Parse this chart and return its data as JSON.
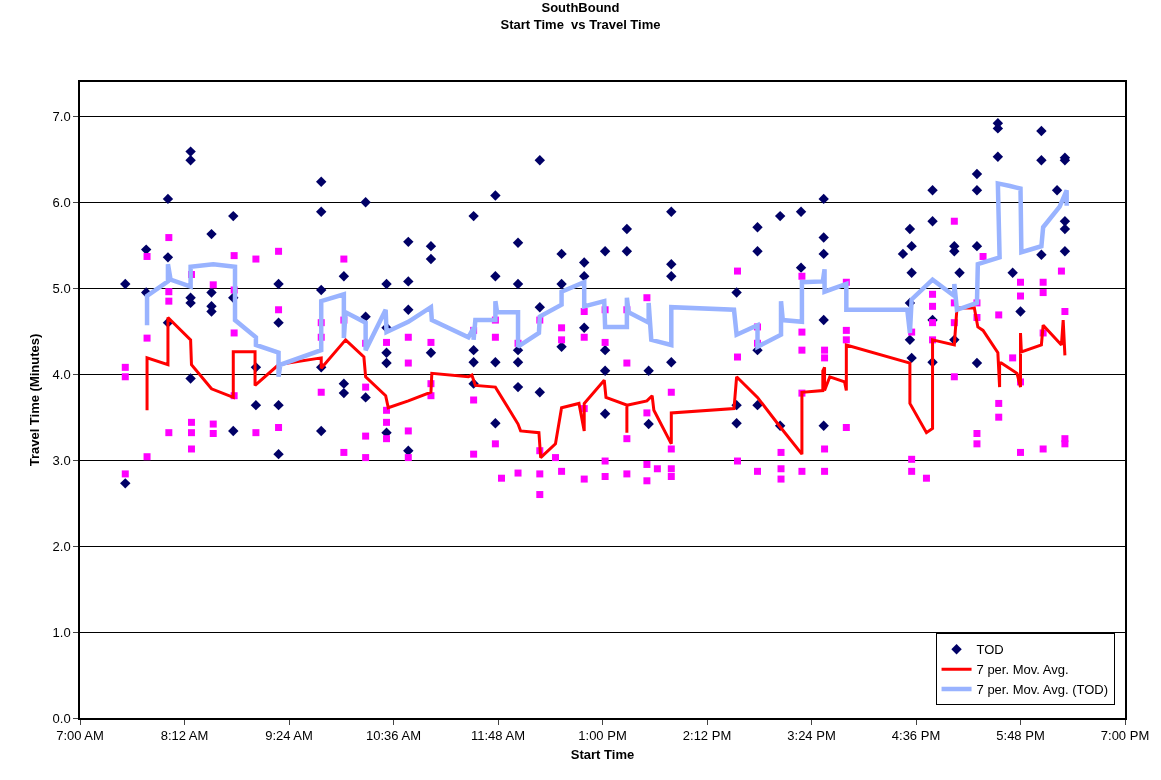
{
  "chart_data": {
    "type": "scatter",
    "title": "SouthBound",
    "subtitle": "Start Time  vs Travel Time",
    "xlabel": "Start Time",
    "ylabel": "Travel Time (Minutes)",
    "xlim": [
      7,
      19
    ],
    "xticks": [
      {
        "value": 7,
        "label": "7:00 AM"
      },
      {
        "value": 8.2,
        "label": "8:12 AM"
      },
      {
        "value": 9.4,
        "label": "9:24 AM"
      },
      {
        "value": 10.6,
        "label": "10:36 AM"
      },
      {
        "value": 11.8,
        "label": "11:48 AM"
      },
      {
        "value": 13,
        "label": "1:00 PM"
      },
      {
        "value": 14.2,
        "label": "2:12 PM"
      },
      {
        "value": 15.4,
        "label": "3:24 PM"
      },
      {
        "value": 16.6,
        "label": "4:36 PM"
      },
      {
        "value": 17.8,
        "label": "5:48 PM"
      },
      {
        "value": 19,
        "label": "7:00 PM"
      }
    ],
    "ylim": [
      0,
      7.4
    ],
    "yticks": [
      {
        "value": 0,
        "label": "0.0"
      },
      {
        "value": 1,
        "label": "1.0"
      },
      {
        "value": 2,
        "label": "2.0"
      },
      {
        "value": 3,
        "label": "3.0"
      },
      {
        "value": 4,
        "label": "4.0"
      },
      {
        "value": 5,
        "label": "5.0"
      },
      {
        "value": 6,
        "label": "6.0"
      },
      {
        "value": 7,
        "label": "7.0"
      }
    ],
    "grid": "y",
    "legend": "bottom right",
    "series": [
      {
        "name": "TOD",
        "marker": "diamond",
        "color": "#000066",
        "x": [
          7.52,
          7.52,
          7.76,
          7.76,
          8.01,
          8.01,
          8.01,
          8.27,
          8.27,
          8.27,
          8.27,
          8.27,
          8.51,
          8.51,
          8.51,
          8.51,
          8.76,
          8.76,
          8.76,
          9.02,
          9.02,
          9.28,
          9.28,
          9.28,
          9.28,
          9.77,
          9.77,
          9.77,
          9.77,
          9.77,
          10.03,
          10.03,
          10.03,
          10.28,
          10.28,
          10.28,
          10.52,
          10.52,
          10.52,
          10.52,
          10.52,
          10.77,
          10.77,
          10.77,
          10.77,
          11.03,
          11.03,
          11.03,
          11.52,
          11.52,
          11.52,
          11.52,
          11.77,
          11.77,
          11.77,
          11.77,
          12.03,
          12.03,
          12.03,
          12.03,
          12.03,
          12.28,
          12.28,
          12.28,
          12.53,
          12.53,
          12.53,
          12.79,
          12.79,
          12.79,
          13.03,
          13.03,
          13.03,
          13.03,
          13.28,
          13.28,
          13.53,
          13.53,
          13.79,
          13.79,
          13.79,
          13.79,
          14.54,
          14.54,
          14.54,
          14.78,
          14.78,
          14.78,
          14.78,
          15.04,
          15.04,
          15.28,
          15.28,
          15.54,
          15.54,
          15.54,
          15.54,
          15.54,
          16.45,
          16.53,
          16.53,
          16.53,
          16.55,
          16.55,
          16.55,
          16.79,
          16.79,
          16.79,
          16.79,
          17.04,
          17.04,
          17.1,
          17.04,
          17.3,
          17.3,
          17.3,
          17.3,
          17.54,
          17.54,
          17.54,
          17.71,
          17.8,
          18.04,
          18.04,
          18.04,
          18.22,
          18.31,
          18.31,
          18.31,
          18.31,
          18.31
        ],
        "values": [
          5.05,
          2.73,
          5.45,
          4.95,
          6.04,
          5.36,
          4.6,
          6.59,
          6.49,
          4.89,
          4.83,
          3.95,
          5.63,
          4.95,
          4.79,
          4.73,
          5.84,
          4.89,
          3.34,
          4.08,
          3.64,
          5.05,
          4.6,
          3.64,
          3.07,
          6.24,
          5.89,
          4.98,
          4.08,
          3.34,
          5.14,
          3.89,
          3.78,
          6.0,
          4.67,
          3.73,
          5.05,
          4.54,
          4.25,
          4.13,
          3.32,
          5.54,
          5.08,
          4.75,
          3.11,
          5.49,
          5.34,
          4.25,
          5.84,
          4.28,
          4.14,
          3.89,
          6.08,
          5.14,
          4.14,
          3.43,
          5.53,
          5.05,
          4.28,
          4.14,
          3.85,
          6.49,
          4.78,
          3.79,
          5.4,
          5.05,
          4.32,
          5.3,
          5.14,
          4.54,
          5.43,
          4.28,
          4.04,
          3.54,
          5.69,
          5.43,
          4.04,
          3.42,
          5.89,
          5.28,
          5.14,
          4.14,
          4.95,
          3.64,
          3.43,
          5.71,
          5.43,
          4.28,
          3.64,
          5.84,
          3.4,
          5.89,
          5.24,
          6.04,
          5.59,
          5.4,
          4.63,
          3.4,
          5.4,
          5.69,
          4.83,
          4.4,
          5.49,
          5.18,
          4.19,
          6.14,
          5.78,
          4.63,
          4.14,
          5.49,
          5.43,
          5.18,
          4.4,
          6.33,
          6.14,
          5.49,
          4.13,
          6.92,
          6.86,
          6.53,
          5.18,
          4.73,
          6.83,
          6.49,
          5.39,
          6.14,
          6.52,
          6.49,
          5.78,
          5.69,
          5.43
        ]
      },
      {
        "marker": "square",
        "color": "#ff00ff",
        "x": [
          7.52,
          7.52,
          7.52,
          7.77,
          7.77,
          7.77,
          8.02,
          8.02,
          8.02,
          8.02,
          8.28,
          8.28,
          8.28,
          8.28,
          8.53,
          8.53,
          8.53,
          8.77,
          8.77,
          8.77,
          8.77,
          9.02,
          9.02,
          9.28,
          9.28,
          9.28,
          9.77,
          9.77,
          9.77,
          10.03,
          10.03,
          10.03,
          10.28,
          10.28,
          10.28,
          10.28,
          10.52,
          10.52,
          10.52,
          10.52,
          10.77,
          10.77,
          10.77,
          10.77,
          11.03,
          11.03,
          11.03,
          11.52,
          11.52,
          11.52,
          11.77,
          11.77,
          11.77,
          11.84,
          12.03,
          12.03,
          12.28,
          12.28,
          12.28,
          12.28,
          12.53,
          12.53,
          12.46,
          12.53,
          12.79,
          12.79,
          12.79,
          12.79,
          13.03,
          13.03,
          13.03,
          13.03,
          13.28,
          13.28,
          13.28,
          13.28,
          13.51,
          13.51,
          13.51,
          13.51,
          13.79,
          13.79,
          13.79,
          13.79,
          13.63,
          14.55,
          14.55,
          14.55,
          14.78,
          14.78,
          14.78,
          15.05,
          15.05,
          15.05,
          15.29,
          15.29,
          15.29,
          15.29,
          15.29,
          15.55,
          15.55,
          15.55,
          15.55,
          15.8,
          15.8,
          15.8,
          15.8,
          16.55,
          16.55,
          16.55,
          16.72,
          16.79,
          16.79,
          16.79,
          16.79,
          17.04,
          17.04,
          17.04,
          17.04,
          17.3,
          17.3,
          17.3,
          17.3,
          17.37,
          17.55,
          17.55,
          17.55,
          17.71,
          17.8,
          17.8,
          17.8,
          17.8,
          18.06,
          18.06,
          18.06,
          18.06,
          18.27,
          18.31,
          18.31,
          18.31
        ],
        "values": [
          4.08,
          3.97,
          2.84,
          5.37,
          4.42,
          3.04,
          5.59,
          4.96,
          4.85,
          3.32,
          5.16,
          3.44,
          3.32,
          3.13,
          5.04,
          3.42,
          3.31,
          5.38,
          4.98,
          4.48,
          3.75,
          5.34,
          3.32,
          5.43,
          4.75,
          3.38,
          4.6,
          4.43,
          3.79,
          5.34,
          4.63,
          3.09,
          4.36,
          3.85,
          3.28,
          3.03,
          4.37,
          3.58,
          3.44,
          3.25,
          4.43,
          4.13,
          3.34,
          3.03,
          4.37,
          3.89,
          3.75,
          4.51,
          3.7,
          3.07,
          4.63,
          4.43,
          3.19,
          2.79,
          4.36,
          2.85,
          4.63,
          3.11,
          2.84,
          2.6,
          4.54,
          4.4,
          3.03,
          2.87,
          4.73,
          4.43,
          3.6,
          2.78,
          4.75,
          4.37,
          2.99,
          2.81,
          4.75,
          4.13,
          3.25,
          2.84,
          4.89,
          3.55,
          2.95,
          2.76,
          3.79,
          3.13,
          2.9,
          2.81,
          2.9,
          5.2,
          4.2,
          2.99,
          4.55,
          4.36,
          2.87,
          3.09,
          2.9,
          2.78,
          5.14,
          4.49,
          4.28,
          3.78,
          2.87,
          4.28,
          4.19,
          3.13,
          2.87,
          5.07,
          4.51,
          4.4,
          3.38,
          4.49,
          3.01,
          2.87,
          2.79,
          4.93,
          4.79,
          4.6,
          4.4,
          5.78,
          4.83,
          4.6,
          3.97,
          4.83,
          4.66,
          3.31,
          3.19,
          5.37,
          4.69,
          3.66,
          3.5,
          4.19,
          5.07,
          4.91,
          3.91,
          3.09,
          5.07,
          4.95,
          4.48,
          3.13,
          5.2,
          4.73,
          3.25,
          3.19
        ]
      },
      {
        "name": "7 per. Mov. Avg.",
        "type": "line",
        "color": "#ff0000",
        "x": [
          7.77,
          7.77,
          8.01,
          8.01,
          8.27,
          8.28,
          8.51,
          8.76,
          8.76,
          9.01,
          9.01,
          9.28,
          9.39,
          9.77,
          9.77,
          10.05,
          10.26,
          10.28,
          10.51,
          10.54,
          10.77,
          11.03,
          11.04,
          11.46,
          11.5,
          11.54,
          11.77,
          12.03,
          12.06,
          12.27,
          12.29,
          12.46,
          12.53,
          12.73,
          12.79,
          12.79,
          13.02,
          13.04,
          13.28,
          13.28,
          13.28,
          13.51,
          13.57,
          13.59,
          13.79,
          13.79,
          14.51,
          14.54,
          14.78,
          15.03,
          15.29,
          15.29,
          15.53,
          15.53,
          15.55,
          15.55,
          15.61,
          15.78,
          15.8,
          15.8,
          16.53,
          16.53,
          16.72,
          16.79,
          16.79,
          17.04,
          17.07,
          17.27,
          17.31,
          17.37,
          17.54,
          17.56,
          17.56,
          17.58,
          17.76,
          17.8,
          17.8,
          17.81,
          18.04,
          18.06,
          18.27,
          18.29,
          18.31
        ],
        "values": [
          3.58,
          4.19,
          4.11,
          4.66,
          4.4,
          4.11,
          3.83,
          3.73,
          4.26,
          4.26,
          3.87,
          4.11,
          4.13,
          4.19,
          4.07,
          4.4,
          4.2,
          3.97,
          3.75,
          3.61,
          3.69,
          3.79,
          4.01,
          3.97,
          3.99,
          3.87,
          3.85,
          3.42,
          3.34,
          3.32,
          3.03,
          3.19,
          3.61,
          3.66,
          3.34,
          3.66,
          3.93,
          3.73,
          3.64,
          3.32,
          3.64,
          3.69,
          3.75,
          3.58,
          3.19,
          3.55,
          3.6,
          3.97,
          3.73,
          3.4,
          3.07,
          3.79,
          3.81,
          4.04,
          4.08,
          3.81,
          3.97,
          3.91,
          3.81,
          4.34,
          4.13,
          3.66,
          3.32,
          3.37,
          4.4,
          4.34,
          4.77,
          4.77,
          4.55,
          4.51,
          4.25,
          3.85,
          4.13,
          4.13,
          4.01,
          3.85,
          4.48,
          4.26,
          4.34,
          4.57,
          4.34,
          4.63,
          4.22
        ]
      },
      {
        "name": "7 per. Mov. Avg. (TOD)",
        "type": "line",
        "color": "#99b3ff",
        "x": [
          7.77,
          7.77,
          8.01,
          8.01,
          8.04,
          8.27,
          8.27,
          8.53,
          8.78,
          8.78,
          9.02,
          9.02,
          9.28,
          9.28,
          9.3,
          9.77,
          9.77,
          10.03,
          10.03,
          10.05,
          10.28,
          10.28,
          10.51,
          10.52,
          10.77,
          11.03,
          11.04,
          11.46,
          11.52,
          11.52,
          11.54,
          11.77,
          11.77,
          11.79,
          12.03,
          12.03,
          12.27,
          12.28,
          12.53,
          12.53,
          12.79,
          12.79,
          13.02,
          13.03,
          13.28,
          13.28,
          13.3,
          13.53,
          13.53,
          13.53,
          13.56,
          13.79,
          13.79,
          14.51,
          14.54,
          14.78,
          14.78,
          15.05,
          15.05,
          15.07,
          15.29,
          15.29,
          15.53,
          15.55,
          15.55,
          15.8,
          15.8,
          16.5,
          16.53,
          16.55,
          16.79,
          17.04,
          17.04,
          17.07,
          17.3,
          17.31,
          17.56,
          17.54,
          17.68,
          17.8,
          17.81,
          18.04,
          18.06,
          18.25,
          18.33,
          18.33
        ],
        "values": [
          4.57,
          4.91,
          5.08,
          5.28,
          5.1,
          5.02,
          5.25,
          5.28,
          5.25,
          4.63,
          4.43,
          4.34,
          4.25,
          3.97,
          4.11,
          4.28,
          4.85,
          4.93,
          4.42,
          4.72,
          4.6,
          4.28,
          4.75,
          4.49,
          4.61,
          4.78,
          4.63,
          4.43,
          4.54,
          4.4,
          4.63,
          4.63,
          4.85,
          4.72,
          4.72,
          4.32,
          4.48,
          4.67,
          4.81,
          4.96,
          5.07,
          4.79,
          4.85,
          4.55,
          4.55,
          4.89,
          4.72,
          4.6,
          4.67,
          4.83,
          4.4,
          4.34,
          4.78,
          4.75,
          4.46,
          4.57,
          4.32,
          4.46,
          4.85,
          4.63,
          4.61,
          5.07,
          5.08,
          5.22,
          4.96,
          5.05,
          4.75,
          4.75,
          4.48,
          4.87,
          5.1,
          4.91,
          5.05,
          4.75,
          4.83,
          5.28,
          5.36,
          6.22,
          6.19,
          6.16,
          5.42,
          5.49,
          5.71,
          5.95,
          6.14,
          5.96
        ]
      }
    ]
  }
}
